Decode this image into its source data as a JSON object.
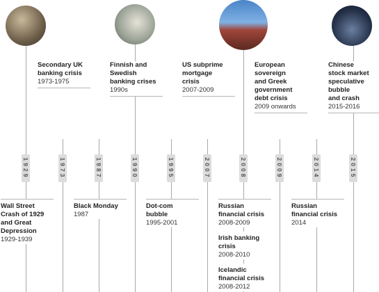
{
  "years": [
    "1929",
    "1973",
    "1987",
    "1990",
    "1995",
    "2007",
    "2008",
    "2009",
    "2014",
    "2015"
  ],
  "top_events": [
    {
      "title": [
        "Secondary UK",
        "banking crisis"
      ],
      "period": "1973-1975"
    },
    {
      "title": [
        "Finnish and",
        "Swedish",
        "banking crises"
      ],
      "period": "1990s"
    },
    {
      "title": [
        "US subprime",
        "mortgage",
        "crisis"
      ],
      "period": "2007-2009"
    },
    {
      "title": [
        "European",
        "sovereign",
        "and Greek",
        "government",
        "debt crisis"
      ],
      "period": "2009 onwards"
    },
    {
      "title": [
        "Chinese",
        "stock market",
        "speculative",
        "bubble",
        "and crash"
      ],
      "period": "2015-2016"
    }
  ],
  "bottom_events": [
    [
      {
        "title": [
          "Wall Street",
          "Crash of 1929",
          "and Great",
          "Depression"
        ],
        "period": "1929-1939"
      }
    ],
    [
      {
        "title": [
          "Black Monday"
        ],
        "period": "1987"
      }
    ],
    [
      {
        "title": [
          "Dot-com",
          "bubble"
        ],
        "period": "1995-2001"
      }
    ],
    [
      {
        "title": [
          "Russian",
          "financial crisis"
        ],
        "period": "2008-2009"
      },
      {
        "title": [
          "Irish banking",
          "crisis"
        ],
        "period": "2008-2010"
      },
      {
        "title": [
          "Icelandic",
          "financial crisis"
        ],
        "period": "2008-2012"
      }
    ],
    [
      {
        "title": [
          "Russian",
          "financial crisis"
        ],
        "period": "2014"
      }
    ]
  ]
}
